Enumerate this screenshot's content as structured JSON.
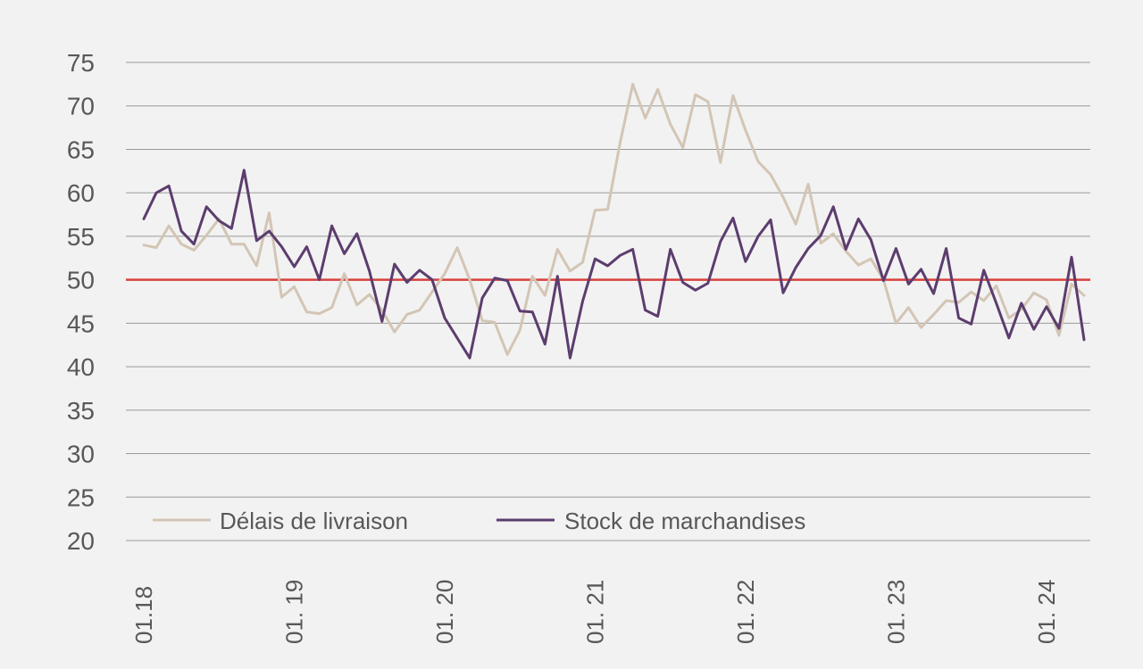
{
  "chart_data": {
    "type": "line",
    "title": "",
    "xlabel": "",
    "ylabel": "",
    "ylim": [
      20,
      75
    ],
    "yticks": [
      "20",
      "25",
      "30",
      "35",
      "40",
      "45",
      "50",
      "55",
      "60",
      "65",
      "70",
      "75"
    ],
    "xtick_labels": [
      "01.18",
      "01. 19",
      "01. 20",
      "01. 21",
      "01. 22",
      "01. 23",
      "01. 24"
    ],
    "xtick_indices": [
      0,
      12,
      24,
      36,
      48,
      60,
      72
    ],
    "grid": true,
    "legend_position": "bottom-left",
    "reference_line": {
      "value": 50,
      "color": "#d9403b"
    },
    "series": [
      {
        "name": "Délais de livraison",
        "color": "#d3c5b5",
        "values": [
          54.0,
          53.7,
          56.2,
          54.1,
          53.4,
          55.1,
          57.0,
          54.1,
          54.1,
          51.6,
          57.7,
          48.0,
          49.2,
          46.3,
          46.1,
          46.8,
          50.7,
          47.1,
          48.3,
          46.5,
          44.0,
          46.0,
          46.5,
          48.6,
          50.7,
          53.7,
          50.0,
          45.3,
          45.1,
          41.4,
          44.2,
          50.4,
          48.2,
          53.5,
          51.0,
          52.0,
          58.0,
          58.1,
          65.8,
          72.5,
          68.6,
          71.9,
          67.9,
          65.2,
          71.3,
          70.5,
          63.5,
          71.2,
          67.2,
          63.6,
          62.1,
          59.5,
          56.4,
          61.0,
          54.2,
          55.3,
          53.3,
          51.7,
          52.4,
          50.0,
          45.0,
          46.8,
          44.5,
          46.0,
          47.6,
          47.4,
          48.6,
          47.6,
          49.3,
          45.6,
          46.6,
          48.5,
          47.7,
          43.6,
          49.5,
          48.2
        ]
      },
      {
        "name": "Stock de marchandises",
        "color": "#5c3d6e",
        "values": [
          57.0,
          60.0,
          60.8,
          55.6,
          54.1,
          58.4,
          56.8,
          55.9,
          62.6,
          54.5,
          55.6,
          53.8,
          51.5,
          53.8,
          50.0,
          56.2,
          53.0,
          55.3,
          51.0,
          45.2,
          51.8,
          49.7,
          51.1,
          50.0,
          45.6,
          43.3,
          41.0,
          47.9,
          50.2,
          49.9,
          46.4,
          46.3,
          42.6,
          50.4,
          41.0,
          47.5,
          52.4,
          51.6,
          52.8,
          53.5,
          46.5,
          45.8,
          53.5,
          49.7,
          48.8,
          49.6,
          54.4,
          57.1,
          52.1,
          55.0,
          56.9,
          48.5,
          51.4,
          53.6,
          55.1,
          58.4,
          53.5,
          57.0,
          54.6,
          49.9,
          53.6,
          49.5,
          51.2,
          48.4,
          53.6,
          45.6,
          44.9,
          51.1,
          47.3,
          43.3,
          47.3,
          44.3,
          46.9,
          44.4,
          52.6,
          43.1
        ]
      }
    ]
  }
}
